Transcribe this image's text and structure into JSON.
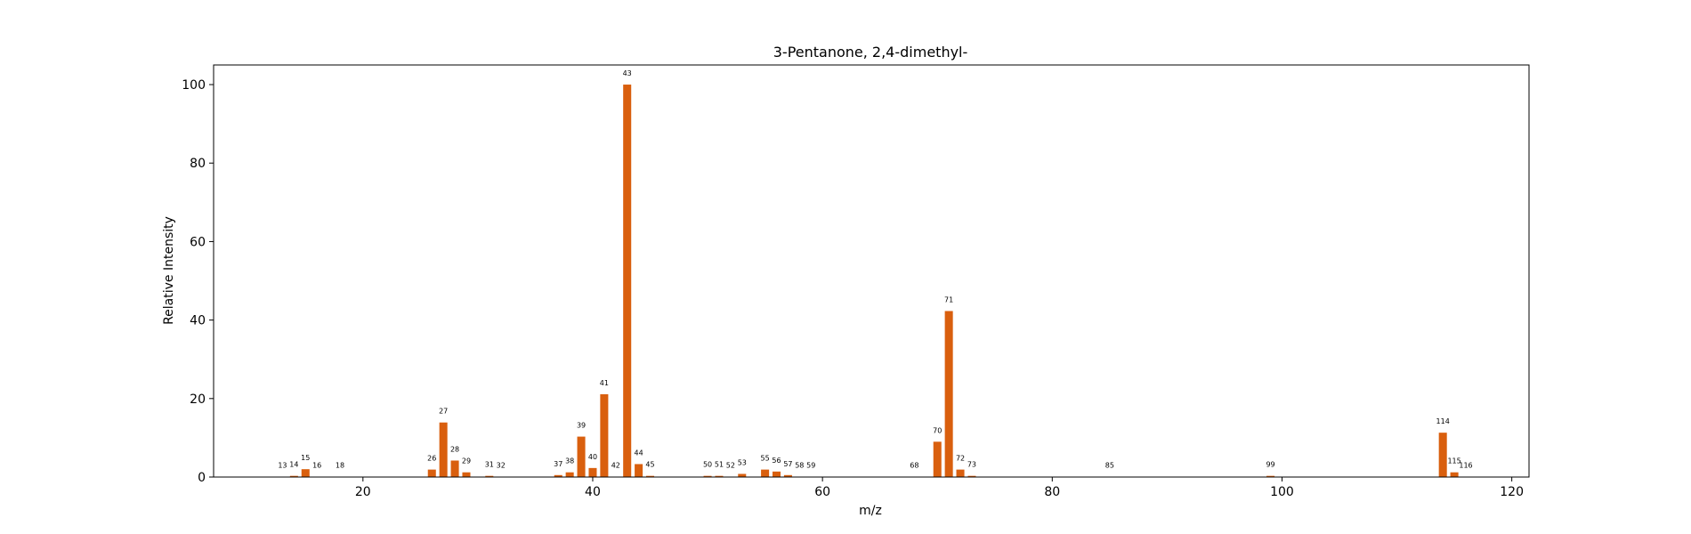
{
  "chart_data": {
    "type": "bar",
    "title": "3-Pentanone, 2,4-dimethyl-",
    "xlabel": "m/z",
    "ylabel": "Relative Intensity",
    "xlim": [
      7,
      121.5
    ],
    "ylim": [
      0,
      105
    ],
    "xticks": [
      20,
      40,
      60,
      80,
      100,
      120
    ],
    "yticks": [
      0,
      20,
      40,
      60,
      80,
      100
    ],
    "grid": false,
    "bar_color": "#d95f0e",
    "series": [
      {
        "x": [
          13,
          14,
          15,
          16,
          18,
          26,
          27,
          28,
          29,
          31,
          32,
          37,
          38,
          39,
          40,
          41,
          42,
          43,
          44,
          45,
          50,
          51,
          52,
          53,
          55,
          56,
          57,
          58,
          59,
          68,
          70,
          71,
          72,
          73,
          85,
          99,
          114,
          115,
          116
        ],
        "values": [
          0.1,
          0.3,
          2.0,
          0.1,
          0.1,
          1.9,
          13.9,
          4.2,
          1.2,
          0.3,
          0.1,
          0.5,
          1.2,
          10.3,
          2.3,
          21.1,
          0.1,
          100.0,
          3.3,
          0.3,
          0.3,
          0.3,
          0.1,
          0.8,
          1.9,
          1.4,
          0.5,
          0.1,
          0.1,
          0.1,
          9.0,
          42.3,
          1.9,
          0.3,
          0.1,
          0.3,
          11.3,
          1.2,
          0.1
        ]
      }
    ]
  }
}
